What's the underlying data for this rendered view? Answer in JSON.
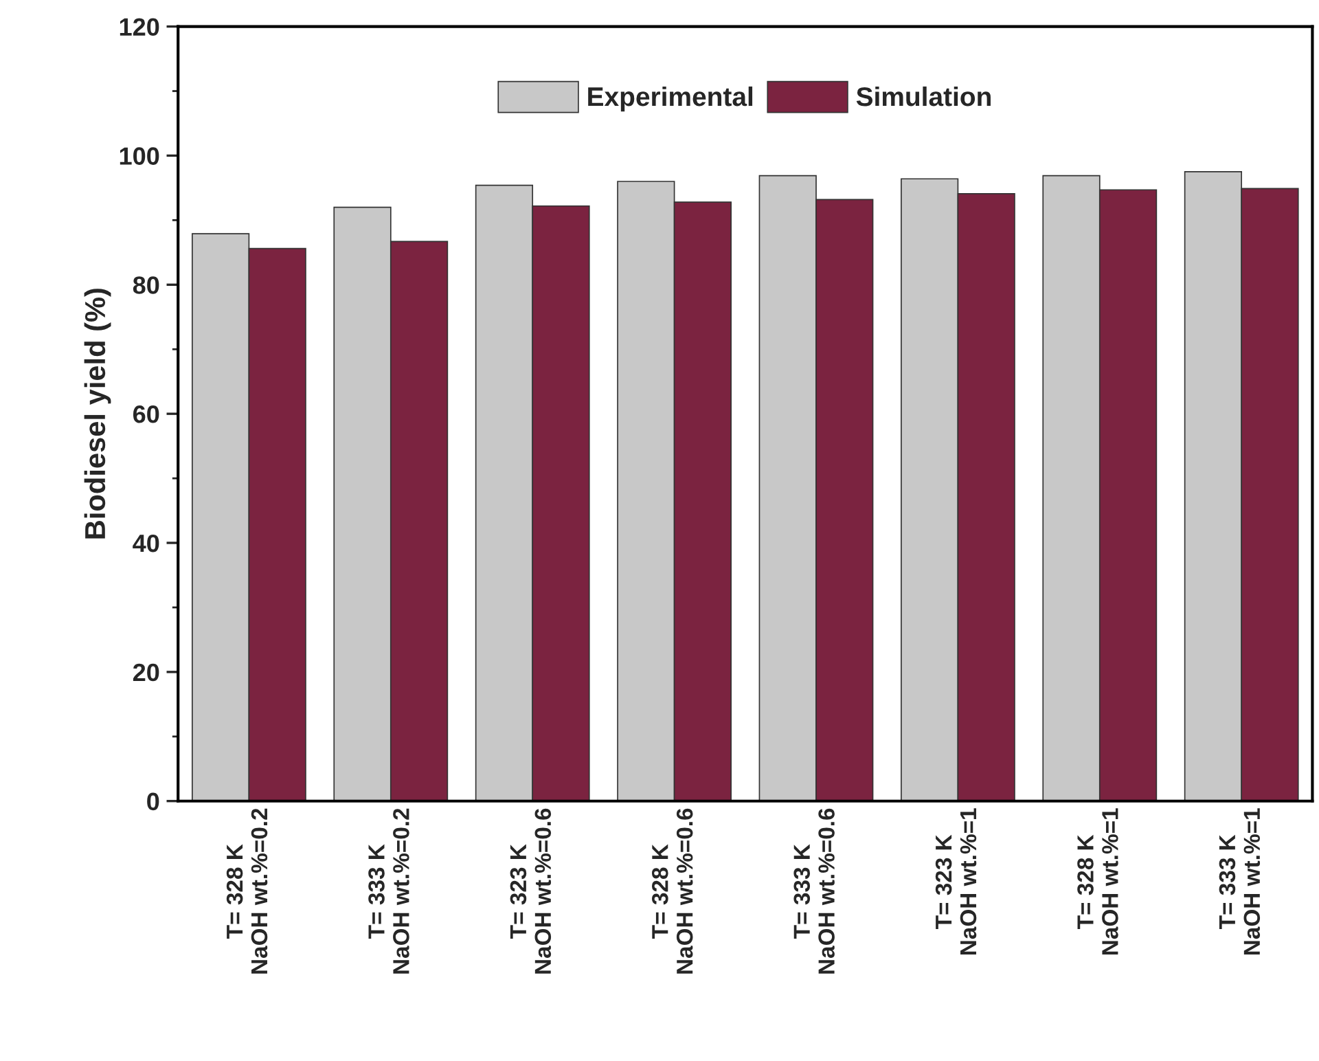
{
  "chart_data": {
    "type": "bar",
    "ylabel": "Biodiesel yield (%)",
    "categories": [
      "T= 328 K\nNaOH wt.%=0.2",
      "T= 333 K\nNaOH wt.%=0.2",
      "T= 323 K\nNaOH wt.%=0.6",
      "T= 328 K\nNaOH wt.%=0.6",
      "T= 333 K\nNaOH wt.%=0.6",
      "T= 323 K\nNaOH wt.%=1",
      "T= 328 K\nNaOH wt.%=1",
      "T= 333 K\nNaOH wt.%=1"
    ],
    "series": [
      {
        "name": "Experimental",
        "color": "#c8c8c8",
        "values": [
          87.9,
          92.0,
          95.4,
          96.0,
          96.9,
          96.4,
          96.9,
          97.5
        ]
      },
      {
        "name": "Simulation",
        "color": "#7b2340",
        "values": [
          85.6,
          86.7,
          92.2,
          92.8,
          93.2,
          94.1,
          94.7,
          94.9
        ]
      }
    ],
    "ylim": [
      0,
      120
    ],
    "yticks": [
      0,
      20,
      40,
      60,
      80,
      100,
      120
    ],
    "grid": false,
    "legend": "top"
  }
}
